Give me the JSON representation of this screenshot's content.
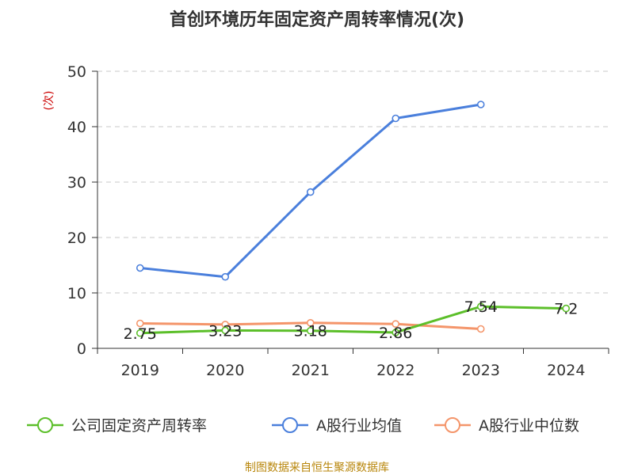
{
  "chart_data": {
    "type": "line",
    "title": "首创环境历年固定资产周转率情况(次)",
    "ylabel": "(次)",
    "xlabel": "",
    "categories": [
      "2019",
      "2020",
      "2021",
      "2022",
      "2023",
      "2024"
    ],
    "ylim": [
      0,
      50
    ],
    "yticks": [
      0,
      10,
      20,
      30,
      40,
      50
    ],
    "grid": true,
    "legend_position": "bottom",
    "series": [
      {
        "name": "公司固定资产周转率",
        "color": "#5cbf2a",
        "values": [
          2.75,
          3.23,
          3.18,
          2.86,
          7.54,
          7.2
        ],
        "labels": [
          "2.75",
          "3.23",
          "3.18",
          "2.86",
          "7.54",
          "7.2"
        ],
        "show_labels": true
      },
      {
        "name": "A股行业均值",
        "color": "#4a7fdc",
        "values": [
          14.5,
          12.9,
          28.2,
          41.5,
          44.0,
          null
        ],
        "show_labels": false
      },
      {
        "name": "A股行业中位数",
        "color": "#f4956a",
        "values": [
          4.5,
          4.3,
          4.6,
          4.4,
          3.5,
          null
        ],
        "show_labels": false
      }
    ]
  },
  "source_text": "制图数据来自恒生聚源数据库"
}
